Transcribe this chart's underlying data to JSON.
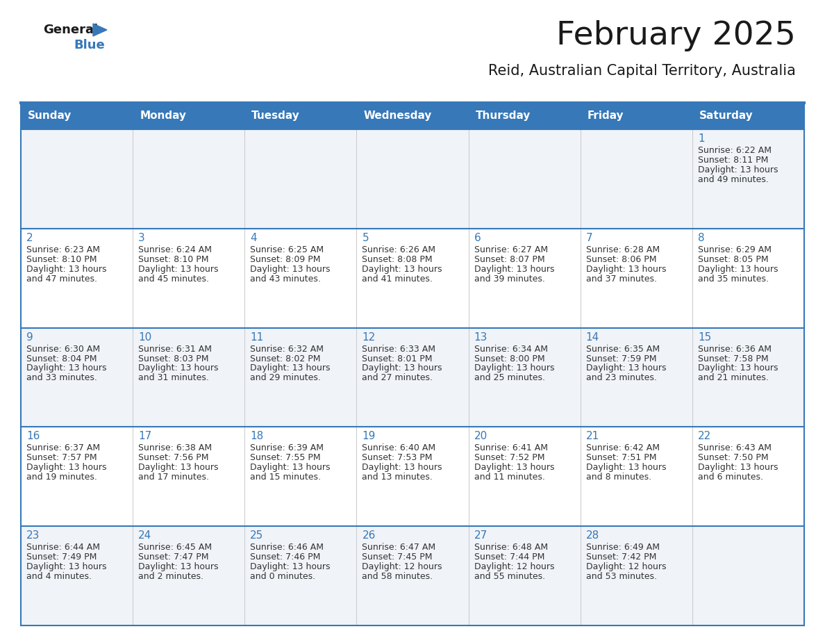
{
  "title": "February 2025",
  "subtitle": "Reid, Australian Capital Territory, Australia",
  "header_color": "#3778b8",
  "header_text_color": "#ffffff",
  "days_of_week": [
    "Sunday",
    "Monday",
    "Tuesday",
    "Wednesday",
    "Thursday",
    "Friday",
    "Saturday"
  ],
  "cell_bg_color": "#f0f3f7",
  "cell_bg_white": "#ffffff",
  "border_color": "#3778b8",
  "day_num_color": "#3778b8",
  "text_color": "#333333",
  "title_fontsize": 34,
  "subtitle_fontsize": 15,
  "header_fontsize": 11,
  "day_num_fontsize": 11,
  "cell_text_fontsize": 9,
  "calendar_data": [
    [
      null,
      null,
      null,
      null,
      null,
      null,
      {
        "day": 1,
        "sunrise": "6:22 AM",
        "sunset": "8:11 PM",
        "daylight_hours": 13,
        "daylight_minutes": 49
      }
    ],
    [
      {
        "day": 2,
        "sunrise": "6:23 AM",
        "sunset": "8:10 PM",
        "daylight_hours": 13,
        "daylight_minutes": 47
      },
      {
        "day": 3,
        "sunrise": "6:24 AM",
        "sunset": "8:10 PM",
        "daylight_hours": 13,
        "daylight_minutes": 45
      },
      {
        "day": 4,
        "sunrise": "6:25 AM",
        "sunset": "8:09 PM",
        "daylight_hours": 13,
        "daylight_minutes": 43
      },
      {
        "day": 5,
        "sunrise": "6:26 AM",
        "sunset": "8:08 PM",
        "daylight_hours": 13,
        "daylight_minutes": 41
      },
      {
        "day": 6,
        "sunrise": "6:27 AM",
        "sunset": "8:07 PM",
        "daylight_hours": 13,
        "daylight_minutes": 39
      },
      {
        "day": 7,
        "sunrise": "6:28 AM",
        "sunset": "8:06 PM",
        "daylight_hours": 13,
        "daylight_minutes": 37
      },
      {
        "day": 8,
        "sunrise": "6:29 AM",
        "sunset": "8:05 PM",
        "daylight_hours": 13,
        "daylight_minutes": 35
      }
    ],
    [
      {
        "day": 9,
        "sunrise": "6:30 AM",
        "sunset": "8:04 PM",
        "daylight_hours": 13,
        "daylight_minutes": 33
      },
      {
        "day": 10,
        "sunrise": "6:31 AM",
        "sunset": "8:03 PM",
        "daylight_hours": 13,
        "daylight_minutes": 31
      },
      {
        "day": 11,
        "sunrise": "6:32 AM",
        "sunset": "8:02 PM",
        "daylight_hours": 13,
        "daylight_minutes": 29
      },
      {
        "day": 12,
        "sunrise": "6:33 AM",
        "sunset": "8:01 PM",
        "daylight_hours": 13,
        "daylight_minutes": 27
      },
      {
        "day": 13,
        "sunrise": "6:34 AM",
        "sunset": "8:00 PM",
        "daylight_hours": 13,
        "daylight_minutes": 25
      },
      {
        "day": 14,
        "sunrise": "6:35 AM",
        "sunset": "7:59 PM",
        "daylight_hours": 13,
        "daylight_minutes": 23
      },
      {
        "day": 15,
        "sunrise": "6:36 AM",
        "sunset": "7:58 PM",
        "daylight_hours": 13,
        "daylight_minutes": 21
      }
    ],
    [
      {
        "day": 16,
        "sunrise": "6:37 AM",
        "sunset": "7:57 PM",
        "daylight_hours": 13,
        "daylight_minutes": 19
      },
      {
        "day": 17,
        "sunrise": "6:38 AM",
        "sunset": "7:56 PM",
        "daylight_hours": 13,
        "daylight_minutes": 17
      },
      {
        "day": 18,
        "sunrise": "6:39 AM",
        "sunset": "7:55 PM",
        "daylight_hours": 13,
        "daylight_minutes": 15
      },
      {
        "day": 19,
        "sunrise": "6:40 AM",
        "sunset": "7:53 PM",
        "daylight_hours": 13,
        "daylight_minutes": 13
      },
      {
        "day": 20,
        "sunrise": "6:41 AM",
        "sunset": "7:52 PM",
        "daylight_hours": 13,
        "daylight_minutes": 11
      },
      {
        "day": 21,
        "sunrise": "6:42 AM",
        "sunset": "7:51 PM",
        "daylight_hours": 13,
        "daylight_minutes": 8
      },
      {
        "day": 22,
        "sunrise": "6:43 AM",
        "sunset": "7:50 PM",
        "daylight_hours": 13,
        "daylight_minutes": 6
      }
    ],
    [
      {
        "day": 23,
        "sunrise": "6:44 AM",
        "sunset": "7:49 PM",
        "daylight_hours": 13,
        "daylight_minutes": 4
      },
      {
        "day": 24,
        "sunrise": "6:45 AM",
        "sunset": "7:47 PM",
        "daylight_hours": 13,
        "daylight_minutes": 2
      },
      {
        "day": 25,
        "sunrise": "6:46 AM",
        "sunset": "7:46 PM",
        "daylight_hours": 13,
        "daylight_minutes": 0
      },
      {
        "day": 26,
        "sunrise": "6:47 AM",
        "sunset": "7:45 PM",
        "daylight_hours": 12,
        "daylight_minutes": 58
      },
      {
        "day": 27,
        "sunrise": "6:48 AM",
        "sunset": "7:44 PM",
        "daylight_hours": 12,
        "daylight_minutes": 55
      },
      {
        "day": 28,
        "sunrise": "6:49 AM",
        "sunset": "7:42 PM",
        "daylight_hours": 12,
        "daylight_minutes": 53
      },
      null
    ]
  ]
}
